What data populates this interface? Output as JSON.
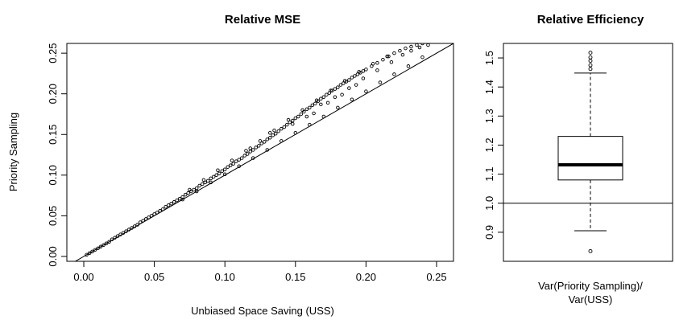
{
  "chart_data": [
    {
      "type": "scatter",
      "title": "Relative MSE",
      "xlabel": "Unbiased Space Saving (USS)",
      "ylabel": "Priority Sampling",
      "xlim": [
        -0.012,
        0.262
      ],
      "ylim": [
        -0.006,
        0.262
      ],
      "x_ticks": [
        0.0,
        0.05,
        0.1,
        0.15,
        0.2,
        0.25
      ],
      "x_tick_labels": [
        "0.00",
        "0.05",
        "0.10",
        "0.15",
        "0.20",
        "0.25"
      ],
      "y_ticks": [
        0.0,
        0.05,
        0.1,
        0.15,
        0.2,
        0.25
      ],
      "y_tick_labels": [
        "0.00",
        "0.05",
        "0.10",
        "0.15",
        "0.20",
        "0.25"
      ],
      "reference_line": {
        "slope": 1,
        "intercept": 0
      },
      "grid": false,
      "points": [
        [
          0.002,
          0.002
        ],
        [
          0.004,
          0.004
        ],
        [
          0.006,
          0.006
        ],
        [
          0.008,
          0.008
        ],
        [
          0.01,
          0.01
        ],
        [
          0.012,
          0.012
        ],
        [
          0.014,
          0.014
        ],
        [
          0.016,
          0.016
        ],
        [
          0.018,
          0.018
        ],
        [
          0.02,
          0.021
        ],
        [
          0.022,
          0.023
        ],
        [
          0.024,
          0.025
        ],
        [
          0.026,
          0.027
        ],
        [
          0.028,
          0.029
        ],
        [
          0.03,
          0.031
        ],
        [
          0.032,
          0.033
        ],
        [
          0.034,
          0.035
        ],
        [
          0.036,
          0.037
        ],
        [
          0.038,
          0.039
        ],
        [
          0.04,
          0.042
        ],
        [
          0.042,
          0.044
        ],
        [
          0.044,
          0.046
        ],
        [
          0.046,
          0.048
        ],
        [
          0.048,
          0.05
        ],
        [
          0.05,
          0.052
        ],
        [
          0.052,
          0.054
        ],
        [
          0.054,
          0.056
        ],
        [
          0.056,
          0.058
        ],
        [
          0.058,
          0.061
        ],
        [
          0.06,
          0.063
        ],
        [
          0.062,
          0.065
        ],
        [
          0.064,
          0.067
        ],
        [
          0.066,
          0.069
        ],
        [
          0.068,
          0.071
        ],
        [
          0.07,
          0.073
        ],
        [
          0.072,
          0.076
        ],
        [
          0.074,
          0.078
        ],
        [
          0.076,
          0.08
        ],
        [
          0.078,
          0.082
        ],
        [
          0.08,
          0.084
        ],
        [
          0.082,
          0.087
        ],
        [
          0.084,
          0.089
        ],
        [
          0.086,
          0.091
        ],
        [
          0.088,
          0.093
        ],
        [
          0.09,
          0.096
        ],
        [
          0.092,
          0.098
        ],
        [
          0.094,
          0.1
        ],
        [
          0.096,
          0.102
        ],
        [
          0.098,
          0.105
        ],
        [
          0.1,
          0.107
        ],
        [
          0.102,
          0.11
        ],
        [
          0.104,
          0.112
        ],
        [
          0.106,
          0.114
        ],
        [
          0.108,
          0.117
        ],
        [
          0.11,
          0.119
        ],
        [
          0.112,
          0.121
        ],
        [
          0.114,
          0.124
        ],
        [
          0.116,
          0.126
        ],
        [
          0.118,
          0.129
        ],
        [
          0.12,
          0.131
        ],
        [
          0.122,
          0.134
        ],
        [
          0.124,
          0.136
        ],
        [
          0.126,
          0.139
        ],
        [
          0.128,
          0.141
        ],
        [
          0.13,
          0.144
        ],
        [
          0.132,
          0.146
        ],
        [
          0.134,
          0.149
        ],
        [
          0.136,
          0.151
        ],
        [
          0.138,
          0.154
        ],
        [
          0.14,
          0.157
        ],
        [
          0.142,
          0.159
        ],
        [
          0.144,
          0.162
        ],
        [
          0.146,
          0.165
        ],
        [
          0.148,
          0.167
        ],
        [
          0.15,
          0.17
        ],
        [
          0.152,
          0.172
        ],
        [
          0.154,
          0.175
        ],
        [
          0.156,
          0.178
        ],
        [
          0.158,
          0.181
        ],
        [
          0.16,
          0.183
        ],
        [
          0.162,
          0.186
        ],
        [
          0.164,
          0.188
        ],
        [
          0.166,
          0.191
        ],
        [
          0.168,
          0.194
        ],
        [
          0.17,
          0.196
        ],
        [
          0.172,
          0.199
        ],
        [
          0.174,
          0.201
        ],
        [
          0.176,
          0.204
        ],
        [
          0.178,
          0.206
        ],
        [
          0.18,
          0.208
        ],
        [
          0.182,
          0.211
        ],
        [
          0.184,
          0.213
        ],
        [
          0.186,
          0.215
        ],
        [
          0.188,
          0.217
        ],
        [
          0.19,
          0.22
        ],
        [
          0.192,
          0.222
        ],
        [
          0.194,
          0.224
        ],
        [
          0.196,
          0.226
        ],
        [
          0.198,
          0.228
        ],
        [
          0.2,
          0.23
        ],
        [
          0.204,
          0.234
        ],
        [
          0.208,
          0.238
        ],
        [
          0.212,
          0.242
        ],
        [
          0.216,
          0.246
        ],
        [
          0.22,
          0.25
        ],
        [
          0.224,
          0.253
        ],
        [
          0.228,
          0.256
        ],
        [
          0.232,
          0.258
        ],
        [
          0.236,
          0.26
        ],
        [
          0.24,
          0.262
        ],
        [
          0.245,
          0.264
        ],
        [
          0.07,
          0.07
        ],
        [
          0.08,
          0.08
        ],
        [
          0.09,
          0.091
        ],
        [
          0.1,
          0.101
        ],
        [
          0.11,
          0.111
        ],
        [
          0.12,
          0.121
        ],
        [
          0.13,
          0.131
        ],
        [
          0.14,
          0.142
        ],
        [
          0.15,
          0.152
        ],
        [
          0.16,
          0.162
        ],
        [
          0.17,
          0.172
        ],
        [
          0.18,
          0.183
        ],
        [
          0.19,
          0.193
        ],
        [
          0.2,
          0.203
        ],
        [
          0.21,
          0.214
        ],
        [
          0.22,
          0.224
        ],
        [
          0.23,
          0.234
        ],
        [
          0.24,
          0.245
        ],
        [
          0.075,
          0.082
        ],
        [
          0.085,
          0.094
        ],
        [
          0.095,
          0.106
        ],
        [
          0.105,
          0.118
        ],
        [
          0.115,
          0.13
        ],
        [
          0.125,
          0.142
        ],
        [
          0.135,
          0.155
        ],
        [
          0.145,
          0.168
        ],
        [
          0.155,
          0.18
        ],
        [
          0.165,
          0.192
        ],
        [
          0.175,
          0.204
        ],
        [
          0.185,
          0.216
        ],
        [
          0.195,
          0.227
        ],
        [
          0.205,
          0.237
        ],
        [
          0.215,
          0.246
        ],
        [
          0.118,
          0.133
        ],
        [
          0.132,
          0.152
        ],
        [
          0.148,
          0.163
        ],
        [
          0.158,
          0.172
        ],
        [
          0.168,
          0.187
        ],
        [
          0.178,
          0.196
        ],
        [
          0.188,
          0.207
        ],
        [
          0.198,
          0.219
        ],
        [
          0.208,
          0.229
        ],
        [
          0.218,
          0.239
        ],
        [
          0.226,
          0.248
        ],
        [
          0.232,
          0.253
        ],
        [
          0.238,
          0.257
        ],
        [
          0.244,
          0.26
        ],
        [
          0.163,
          0.176
        ],
        [
          0.173,
          0.189
        ],
        [
          0.183,
          0.199
        ],
        [
          0.193,
          0.211
        ]
      ]
    },
    {
      "type": "box",
      "title": "Relative Efficiency",
      "xlabel": "Var(Priority Sampling)/\nVar(USS)",
      "ylim": [
        0.8,
        1.55
      ],
      "y_ticks": [
        0.9,
        1.0,
        1.1,
        1.2,
        1.3,
        1.4,
        1.5
      ],
      "y_tick_labels": [
        "0.9",
        "1.0",
        "1.1",
        "1.2",
        "1.3",
        "1.4",
        "1.5"
      ],
      "reference_line": {
        "y": 1.0
      },
      "box": {
        "whisker_low": 0.905,
        "q1": 1.08,
        "median": 1.132,
        "q3": 1.23,
        "whisker_high": 1.448
      },
      "outliers": [
        0.835,
        1.462,
        1.475,
        1.49,
        1.502,
        1.518
      ]
    }
  ]
}
